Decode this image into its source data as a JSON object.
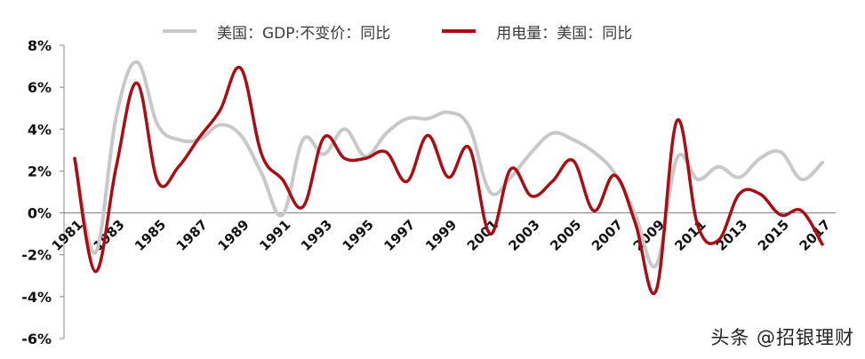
{
  "chart_data": {
    "type": "line",
    "title": "",
    "xlabel": "",
    "ylabel": "",
    "ylim": [
      -6,
      8
    ],
    "y_ticks": [
      "8%",
      "6%",
      "4%",
      "2%",
      "0%",
      "-2%",
      "-4%",
      "-6%"
    ],
    "x_tick_labels": [
      "1981",
      "1983",
      "1985",
      "1987",
      "1989",
      "1991",
      "1993",
      "1995",
      "1997",
      "1999",
      "2001",
      "2003",
      "2005",
      "2007",
      "2009",
      "2011",
      "2013",
      "2015",
      "2017"
    ],
    "x": [
      1981,
      1982,
      1983,
      1984,
      1985,
      1986,
      1987,
      1988,
      1989,
      1990,
      1991,
      1992,
      1993,
      1994,
      1995,
      1996,
      1997,
      1998,
      1999,
      2000,
      2001,
      2002,
      2003,
      2004,
      2005,
      2006,
      2007,
      2008,
      2009,
      2010,
      2011,
      2012,
      2013,
      2014,
      2015,
      2016,
      2017
    ],
    "series": [
      {
        "name": "美国：GDP:不变价：同比",
        "color": "#c8c8c8",
        "values": [
          2.6,
          -1.9,
          4.6,
          7.2,
          4.2,
          3.5,
          3.5,
          4.2,
          3.7,
          1.9,
          -0.1,
          3.5,
          2.8,
          4.0,
          2.7,
          3.8,
          4.5,
          4.5,
          4.8,
          4.1,
          1.0,
          1.7,
          2.9,
          3.8,
          3.5,
          2.9,
          1.9,
          -0.1,
          -2.5,
          2.6,
          1.6,
          2.2,
          1.7,
          2.6,
          2.9,
          1.6,
          2.4
        ]
      },
      {
        "name": "用电量：美国：同比",
        "color": "#a50f15",
        "values": [
          2.6,
          -2.8,
          2.2,
          6.2,
          1.5,
          2.2,
          3.6,
          4.9,
          6.9,
          2.8,
          1.6,
          0.3,
          3.6,
          2.6,
          2.6,
          2.9,
          1.5,
          3.7,
          1.7,
          3.1,
          -1.0,
          2.1,
          0.8,
          1.5,
          2.5,
          0.1,
          1.8,
          -0.5,
          -3.7,
          4.4,
          -0.6,
          -1.3,
          0.9,
          0.9,
          -0.1,
          0.1,
          -1.5
        ]
      }
    ],
    "legend_position": "top",
    "grid": false
  },
  "legend": {
    "gdp_label": "美国：GDP:不变价：同比",
    "power_label": "用电量：美国：同比"
  },
  "watermark": "头条 @招银理财"
}
